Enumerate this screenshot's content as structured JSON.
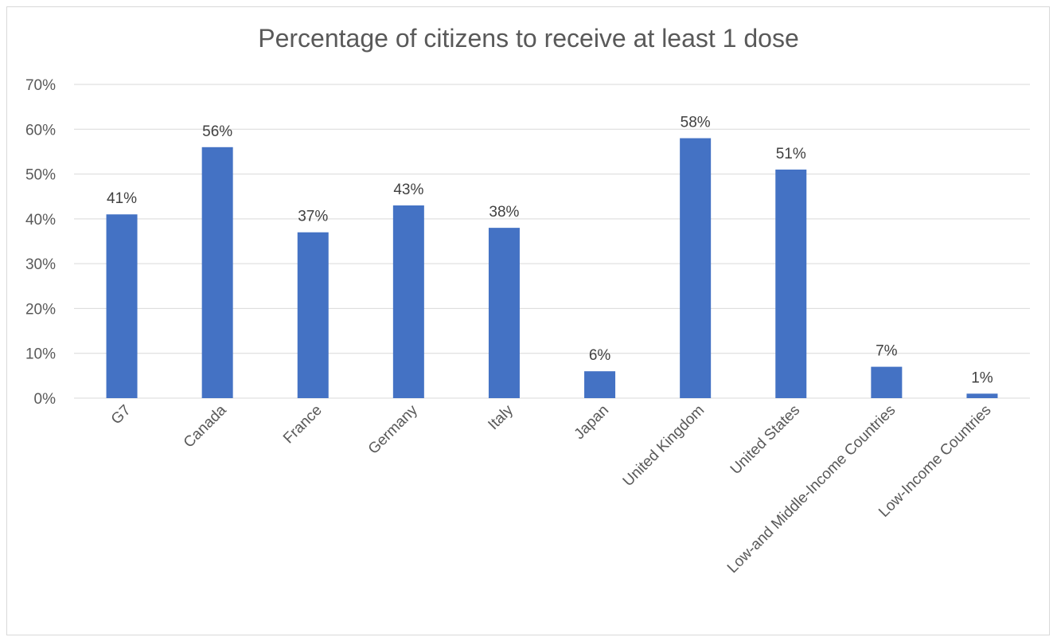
{
  "chart_data": {
    "type": "bar",
    "title": "Percentage of citizens to receive at least 1 dose",
    "xlabel": "",
    "ylabel": "",
    "categories": [
      "G7",
      "Canada",
      "France",
      "Germany",
      "Italy",
      "Japan",
      "United Kingdom",
      "United States",
      "Low-and Middle-Income Countries",
      "Low-Income Countries"
    ],
    "values": [
      41,
      56,
      37,
      43,
      38,
      6,
      58,
      51,
      7,
      1
    ],
    "data_labels": [
      "41%",
      "56%",
      "37%",
      "43%",
      "38%",
      "6%",
      "58%",
      "51%",
      "7%",
      "1%"
    ],
    "ylim": [
      0,
      70
    ],
    "yticks": [
      0,
      10,
      20,
      30,
      40,
      50,
      60,
      70
    ],
    "ytick_labels": [
      "0%",
      "10%",
      "20%",
      "30%",
      "40%",
      "50%",
      "60%",
      "70%"
    ],
    "grid": true,
    "legend": "none",
    "bar_color": "#4472c4",
    "grid_color": "#d9d9d9"
  }
}
